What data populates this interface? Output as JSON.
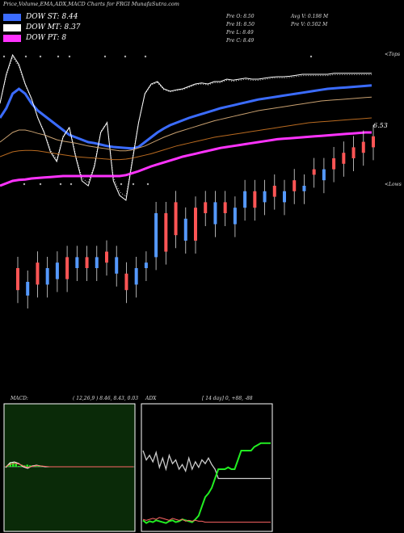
{
  "page": {
    "title": "Price,Volume,EMA,ADX,MACD Charts for FRGI MunafaSutra.com"
  },
  "legend": [
    {
      "label": "DOW ST: 8.44",
      "color": "#3b6cff"
    },
    {
      "label": "DOW MT: 8.37",
      "color": "#ffffff"
    },
    {
      "label": "DOW PT: 8",
      "color": "#ff33ff"
    }
  ],
  "price_info": {
    "open": "Pre  O: 8.50",
    "high": "Pre  H: 8.50",
    "low": "Pre  L: 8.49",
    "close": "Pre  C: 8.49",
    "avg_vol": "Avg V: 0.198  M",
    "pre_vol": "Pre  V: 0.502  M"
  },
  "markers": {
    "tops": "<Tops",
    "lows": "<Lows"
  },
  "chart_data": [
    {
      "type": "line",
      "title": "Price,Volume,EMA,ADX,MACD Charts for FRGI MunafaSutra.com",
      "price_label": "6.53",
      "x": [
        0,
        1,
        2,
        3,
        4,
        5,
        6,
        7,
        8,
        9,
        10,
        11,
        12,
        13,
        14,
        15,
        16,
        17,
        18,
        19,
        20,
        21,
        22,
        23,
        24,
        25,
        26,
        27,
        28,
        29,
        30,
        31,
        32,
        33,
        34,
        35,
        36,
        37,
        38,
        39,
        40,
        41,
        42,
        43,
        44,
        45,
        46,
        47,
        48,
        49,
        50,
        51,
        52,
        53,
        54,
        55,
        56,
        57,
        58,
        59
      ],
      "series": [
        {
          "name": "DOW ST: 8.44",
          "color": "#3b6cff",
          "values": [
            7.3,
            7.5,
            7.8,
            7.9,
            7.8,
            7.6,
            7.45,
            7.35,
            7.25,
            7.15,
            7.05,
            6.95,
            6.9,
            6.85,
            6.8,
            6.78,
            6.75,
            6.72,
            6.7,
            6.69,
            6.68,
            6.67,
            6.7,
            6.8,
            6.9,
            7.0,
            7.08,
            7.15,
            7.2,
            7.25,
            7.3,
            7.34,
            7.38,
            7.42,
            7.46,
            7.5,
            7.53,
            7.56,
            7.59,
            7.62,
            7.65,
            7.68,
            7.7,
            7.72,
            7.74,
            7.76,
            7.78,
            7.8,
            7.82,
            7.84,
            7.86,
            7.88,
            7.9,
            7.91,
            7.92,
            7.93,
            7.94,
            7.95,
            7.96,
            7.97
          ]
        },
        {
          "name": "DOW MT: 8.37",
          "color": "#ffffff",
          "values": [
            7.6,
            8.2,
            8.6,
            8.4,
            8.0,
            7.7,
            7.3,
            7.0,
            6.6,
            6.4,
            6.9,
            7.1,
            6.5,
            6.0,
            5.9,
            6.3,
            7.0,
            7.2,
            6.0,
            5.7,
            5.6,
            6.4,
            7.2,
            7.8,
            8.0,
            8.05,
            7.9,
            7.85,
            7.88,
            7.9,
            7.95,
            8.0,
            8.02,
            8.0,
            8.05,
            8.05,
            8.1,
            8.08,
            8.1,
            8.12,
            8.1,
            8.1,
            8.12,
            8.14,
            8.15,
            8.15,
            8.16,
            8.18,
            8.2,
            8.2,
            8.2,
            8.2,
            8.2,
            8.22,
            8.22,
            8.22,
            8.22,
            8.22,
            8.22,
            8.22
          ]
        },
        {
          "name": "DOW PT: 8",
          "color": "#ff33ff",
          "values": [
            5.9,
            5.95,
            6.0,
            6.02,
            6.03,
            6.05,
            6.06,
            6.07,
            6.08,
            6.09,
            6.1,
            6.1,
            6.1,
            6.1,
            6.1,
            6.1,
            6.1,
            6.1,
            6.1,
            6.1,
            6.12,
            6.16,
            6.2,
            6.25,
            6.3,
            6.34,
            6.38,
            6.42,
            6.46,
            6.5,
            6.53,
            6.56,
            6.59,
            6.62,
            6.65,
            6.68,
            6.7,
            6.72,
            6.74,
            6.76,
            6.78,
            6.8,
            6.82,
            6.84,
            6.86,
            6.87,
            6.88,
            6.89,
            6.9,
            6.91,
            6.92,
            6.93,
            6.94,
            6.95,
            6.96,
            6.97,
            6.98,
            6.99,
            7.0,
            7.0
          ]
        },
        {
          "name": "",
          "color": "#c8a070",
          "values": [
            6.8,
            6.9,
            7.0,
            7.05,
            7.05,
            7.02,
            6.98,
            6.95,
            6.9,
            6.85,
            6.82,
            6.8,
            6.78,
            6.75,
            6.72,
            6.7,
            6.68,
            6.66,
            6.64,
            6.62,
            6.62,
            6.64,
            6.68,
            6.72,
            6.78,
            6.84,
            6.9,
            6.95,
            7.0,
            7.04,
            7.08,
            7.12,
            7.16,
            7.2,
            7.24,
            7.27,
            7.3,
            7.33,
            7.36,
            7.39,
            7.42,
            7.45,
            7.47,
            7.49,
            7.51,
            7.53,
            7.55,
            7.57,
            7.59,
            7.61,
            7.63,
            7.65,
            7.66,
            7.67,
            7.68,
            7.69,
            7.7,
            7.71,
            7.72,
            7.73
          ]
        },
        {
          "name": "",
          "color": "#b86a20",
          "values": [
            6.5,
            6.55,
            6.6,
            6.62,
            6.63,
            6.63,
            6.62,
            6.6,
            6.58,
            6.56,
            6.54,
            6.52,
            6.5,
            6.49,
            6.48,
            6.47,
            6.46,
            6.45,
            6.44,
            6.44,
            6.45,
            6.47,
            6.5,
            6.53,
            6.56,
            6.6,
            6.64,
            6.68,
            6.72,
            6.75,
            6.78,
            6.81,
            6.84,
            6.87,
            6.9,
            6.92,
            6.94,
            6.96,
            6.98,
            7.0,
            7.02,
            7.04,
            7.06,
            7.08,
            7.1,
            7.12,
            7.14,
            7.16,
            7.18,
            7.2,
            7.21,
            7.22,
            7.23,
            7.24,
            7.25,
            7.26,
            7.27,
            7.28,
            7.29,
            7.3
          ]
        }
      ]
    },
    {
      "type": "bar",
      "title": "",
      "bars": [
        {
          "x": 0,
          "open": 12,
          "close": 20,
          "color": "#ff5555"
        },
        {
          "x": 1,
          "open": 15,
          "close": 10,
          "color": "#5599ff"
        },
        {
          "x": 2,
          "open": 14,
          "close": 22,
          "color": "#ff5555"
        },
        {
          "x": 3,
          "open": 20,
          "close": 14,
          "color": "#5599ff"
        },
        {
          "x": 4,
          "open": 22,
          "close": 16,
          "color": "#5599ff"
        },
        {
          "x": 5,
          "open": 16,
          "close": 24,
          "color": "#ff5555"
        },
        {
          "x": 6,
          "open": 24,
          "close": 20,
          "color": "#5599ff"
        },
        {
          "x": 7,
          "open": 20,
          "close": 24,
          "color": "#ff5555"
        },
        {
          "x": 8,
          "open": 24,
          "close": 20,
          "color": "#5599ff"
        },
        {
          "x": 9,
          "open": 22,
          "close": 26,
          "color": "#ff5555"
        },
        {
          "x": 10,
          "open": 24,
          "close": 18,
          "color": "#5599ff"
        },
        {
          "x": 11,
          "open": 18,
          "close": 12,
          "color": "#ff5555"
        },
        {
          "x": 12,
          "open": 14,
          "close": 20,
          "color": "#5599ff"
        },
        {
          "x": 13,
          "open": 22,
          "close": 20,
          "color": "#5599ff"
        },
        {
          "x": 14,
          "open": 24,
          "close": 40,
          "color": "#5599ff"
        },
        {
          "x": 15,
          "open": 26,
          "close": 40,
          "color": "#ff5555"
        },
        {
          "x": 16,
          "open": 32,
          "close": 44,
          "color": "#ff5555"
        },
        {
          "x": 17,
          "open": 30,
          "close": 38,
          "color": "#5599ff"
        },
        {
          "x": 18,
          "open": 30,
          "close": 42,
          "color": "#ff5555"
        },
        {
          "x": 19,
          "open": 40,
          "close": 44,
          "color": "#ff5555"
        },
        {
          "x": 20,
          "open": 36,
          "close": 44,
          "color": "#5599ff"
        },
        {
          "x": 21,
          "open": 40,
          "close": 44,
          "color": "#ff5555"
        },
        {
          "x": 22,
          "open": 36,
          "close": 42,
          "color": "#5599ff"
        },
        {
          "x": 23,
          "open": 42,
          "close": 48,
          "color": "#5599ff"
        },
        {
          "x": 24,
          "open": 48,
          "close": 42,
          "color": "#ff5555"
        },
        {
          "x": 25,
          "open": 44,
          "close": 48,
          "color": "#5599ff"
        },
        {
          "x": 26,
          "open": 46,
          "close": 50,
          "color": "#ff5555"
        },
        {
          "x": 27,
          "open": 48,
          "close": 44,
          "color": "#5599ff"
        },
        {
          "x": 28,
          "open": 48,
          "close": 52,
          "color": "#ff5555"
        },
        {
          "x": 29,
          "open": 50,
          "close": 48,
          "color": "#5599ff"
        },
        {
          "x": 30,
          "open": 54,
          "close": 56,
          "color": "#ff5555"
        },
        {
          "x": 31,
          "open": 56,
          "close": 52,
          "color": "#5599ff"
        },
        {
          "x": 32,
          "open": 56,
          "close": 60,
          "color": "#ff5555"
        },
        {
          "x": 33,
          "open": 58,
          "close": 62,
          "color": "#ff5555"
        },
        {
          "x": 34,
          "open": 60,
          "close": 64,
          "color": "#ff5555"
        },
        {
          "x": 35,
          "open": 62,
          "close": 66,
          "color": "#ff5555"
        },
        {
          "x": 36,
          "open": 64,
          "close": 68,
          "color": "#ff5555"
        }
      ]
    },
    {
      "type": "line",
      "title": "MACD:",
      "params": "( 12,26,9 ) 8.46,  8.43,  0.03",
      "series": [
        {
          "name": "",
          "color": "#ffffff",
          "values": [
            -0.1,
            0.5,
            0.6,
            0.4,
            0.0,
            -0.2,
            0.1,
            0.2,
            0.1,
            0.0,
            0.0,
            0.0,
            0.0,
            0.0,
            0.0,
            0.0,
            0.0,
            0.0,
            0.0,
            0.0,
            0.0,
            0.0,
            0.0,
            0.0,
            0.0,
            0.0,
            0.0,
            0.0,
            0.0,
            0.0
          ]
        },
        {
          "name": "",
          "color": "#ff6666",
          "values": [
            0.0,
            0.3,
            0.45,
            0.35,
            0.1,
            -0.1,
            0.05,
            0.15,
            0.1,
            0.05,
            0.0,
            0.0,
            0.0,
            0.0,
            0.0,
            0.0,
            0.0,
            0.0,
            0.0,
            0.0,
            0.0,
            0.0,
            0.0,
            0.0,
            0.0,
            0.0,
            0.0,
            0.0,
            0.0,
            0.0
          ]
        }
      ]
    },
    {
      "type": "line",
      "title": "ADX",
      "params": "[ 14  day] 0,  +88,  -88",
      "series": [
        {
          "name": "",
          "color": "#cccccc",
          "values": [
            80,
            70,
            75,
            68,
            78,
            62,
            72,
            60,
            75,
            66,
            70,
            60,
            65,
            58,
            72,
            60,
            68,
            62,
            70,
            66,
            72,
            65,
            60,
            50,
            50,
            50,
            50,
            50,
            50,
            50,
            50,
            50,
            50,
            50,
            50,
            50,
            50,
            50,
            50,
            50
          ]
        },
        {
          "name": "",
          "color": "#22ee22",
          "values": [
            5,
            2,
            4,
            3,
            5,
            4,
            3,
            2,
            4,
            5,
            3,
            4,
            6,
            5,
            4,
            3,
            6,
            10,
            20,
            30,
            34,
            40,
            50,
            60,
            60,
            60,
            62,
            60,
            60,
            70,
            80,
            80,
            80,
            80,
            84,
            86,
            88,
            88,
            88,
            88
          ]
        },
        {
          "name": "",
          "color": "#ff6666",
          "values": [
            6,
            5,
            6,
            7,
            6,
            8,
            7,
            6,
            5,
            7,
            6,
            5,
            6,
            4,
            5,
            4,
            5,
            4,
            4,
            3,
            3,
            3,
            3,
            3,
            3,
            3,
            3,
            3,
            3,
            3,
            3,
            3,
            3,
            3,
            3,
            3,
            3,
            3,
            3,
            3
          ]
        }
      ]
    }
  ]
}
